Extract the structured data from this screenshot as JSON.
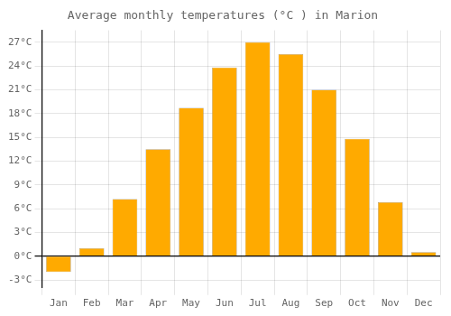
{
  "chart_data": {
    "type": "bar",
    "title": "Average monthly temperatures (°C ) in Marion",
    "categories": [
      "Jan",
      "Feb",
      "Mar",
      "Apr",
      "May",
      "Jun",
      "Jul",
      "Aug",
      "Sep",
      "Oct",
      "Nov",
      "Dec"
    ],
    "values": [
      -2.0,
      1.0,
      7.2,
      13.5,
      18.7,
      23.8,
      27.0,
      25.5,
      21.0,
      14.8,
      6.8,
      0.5
    ],
    "color": "#FFAA00",
    "ylim": [
      -4.0,
      28.5
    ],
    "yticks": [
      {
        "value": -3,
        "label": "-3°C"
      },
      {
        "value": 0,
        "label": "0°C"
      },
      {
        "value": 3,
        "label": "3°C"
      },
      {
        "value": 6,
        "label": "6°C"
      },
      {
        "value": 9,
        "label": "9°C"
      },
      {
        "value": 12,
        "label": "12°C"
      },
      {
        "value": 15,
        "label": "15°C"
      },
      {
        "value": 18,
        "label": "18°C"
      },
      {
        "value": 21,
        "label": "21°C"
      },
      {
        "value": 24,
        "label": "24°C"
      },
      {
        "value": 27,
        "label": "27°C"
      }
    ],
    "grid": true
  }
}
